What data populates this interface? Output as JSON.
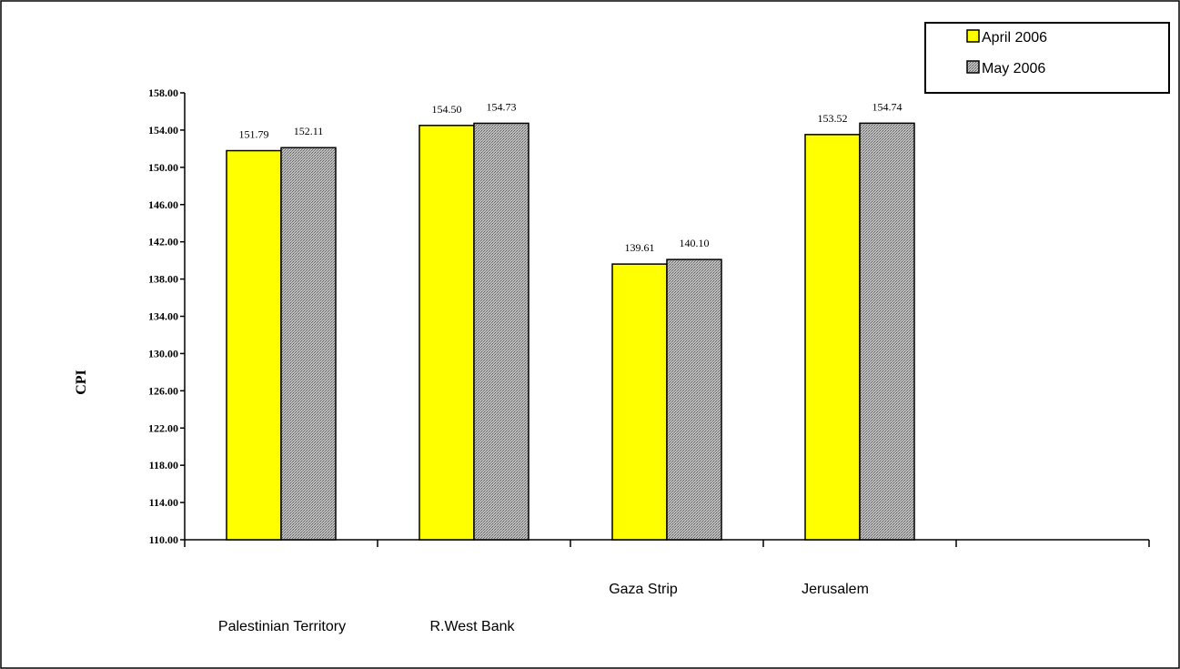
{
  "chart_data": {
    "type": "bar",
    "categories": [
      "Palestinian Territory",
      "R.West Bank",
      "Gaza Strip",
      "Jerusalem"
    ],
    "series": [
      {
        "name": "April 2006",
        "values": [
          151.79,
          154.5,
          139.61,
          153.52
        ],
        "color": "#ffff00",
        "pattern": "solid"
      },
      {
        "name": "May 2006",
        "values": [
          152.11,
          154.73,
          140.1,
          154.74
        ],
        "color": "#a6a6a6",
        "pattern": "dotted-gray"
      }
    ],
    "title": "",
    "xlabel": "",
    "ylabel": "CPI",
    "ylim": [
      110,
      158
    ],
    "yticks": [
      "110.00",
      "114.00",
      "118.00",
      "122.00",
      "126.00",
      "130.00",
      "134.00",
      "138.00",
      "142.00",
      "146.00",
      "150.00",
      "154.00",
      "158.00"
    ],
    "grid": false,
    "legend_position": "top-right"
  }
}
